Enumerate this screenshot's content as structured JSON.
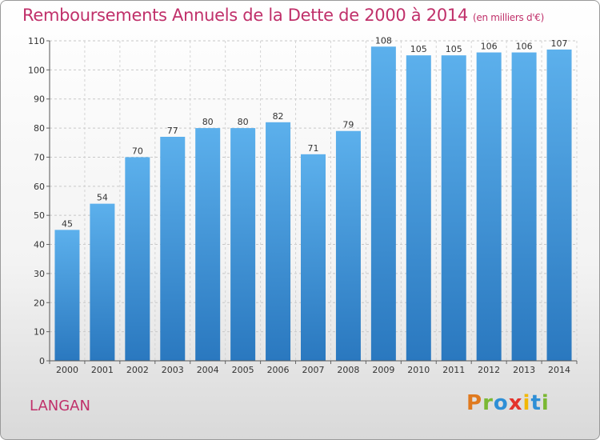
{
  "chart_data": {
    "type": "bar",
    "title": "Remboursements Annuels de la Dette de 2000 à 2014",
    "unit": "(en milliers d'€)",
    "categories": [
      "2000",
      "2001",
      "2002",
      "2003",
      "2004",
      "2005",
      "2006",
      "2007",
      "2008",
      "2009",
      "2010",
      "2011",
      "2012",
      "2013",
      "2014"
    ],
    "values": [
      45,
      54,
      70,
      77,
      80,
      80,
      82,
      71,
      79,
      108,
      105,
      105,
      106,
      106,
      107
    ],
    "ylim": [
      0,
      110
    ],
    "yticks": [
      0,
      10,
      20,
      30,
      40,
      50,
      60,
      70,
      80,
      90,
      100,
      110
    ],
    "grid": true,
    "bar_color": "#4a9fe0"
  },
  "footer": {
    "commune": "LANGAN",
    "logo": "Proxiti"
  }
}
